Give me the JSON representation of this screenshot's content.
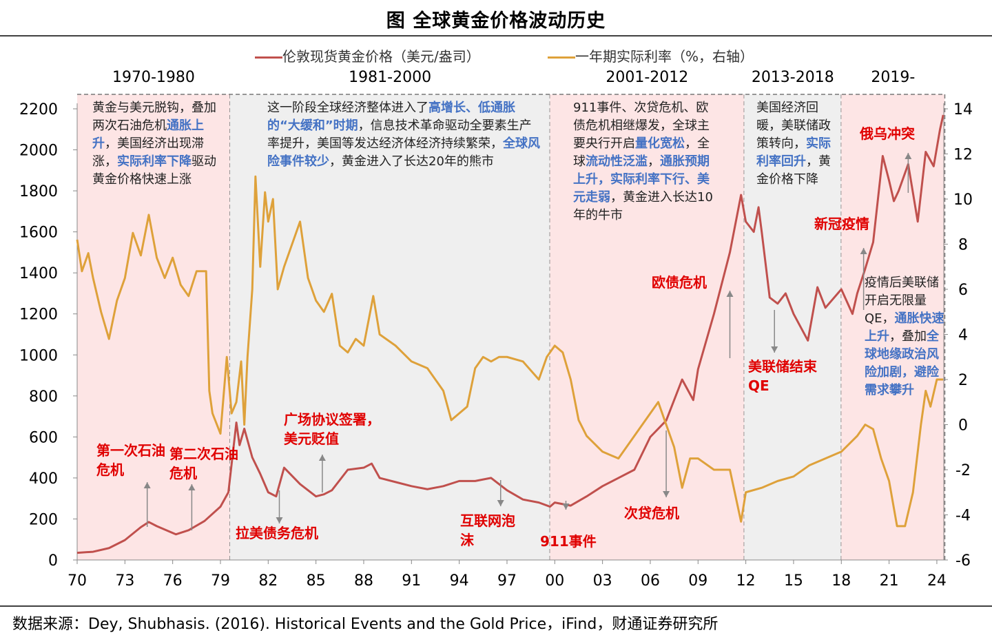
{
  "title": "图  全球黄金价格波动历史",
  "source": "数据来源：Dey, Shubhasis. (2016). Historical Events and the Gold Price，iFind，财通证券研究所",
  "chart_data": {
    "type": "line",
    "x_ticks": [
      "70",
      "73",
      "76",
      "79",
      "82",
      "85",
      "88",
      "91",
      "94",
      "97",
      "00",
      "03",
      "06",
      "09",
      "12",
      "15",
      "18",
      "21",
      "24"
    ],
    "y_left": {
      "range": [
        0,
        2200
      ],
      "ticks": [
        0,
        200,
        400,
        600,
        800,
        1000,
        1200,
        1400,
        1600,
        1800,
        2000,
        2200
      ]
    },
    "y_right": {
      "range": [
        -6,
        14
      ],
      "ticks": [
        -6,
        -4,
        -2,
        0,
        2,
        4,
        6,
        8,
        10,
        12,
        14
      ]
    },
    "colors": {
      "gold": "#c0504d",
      "rate": "#dea13a",
      "shade_pink": "#fde5e5",
      "shade_gray": "#efefef",
      "highlight": "#4472c4",
      "event": "#e00000"
    },
    "series": [
      {
        "name": "伦敦现货黄金价格（美元/盎司）",
        "axis": "left",
        "x": [
          1970,
          1971,
          1972,
          1973,
          1974,
          1974.5,
          1975,
          1976.2,
          1977,
          1978,
          1979,
          1979.5,
          1980,
          1980.2,
          1980.5,
          1981,
          1981.5,
          1982,
          1982.5,
          1983,
          1983.5,
          1984,
          1985,
          1985.5,
          1986,
          1987,
          1988,
          1988.5,
          1989,
          1990,
          1991,
          1992,
          1993,
          1994,
          1995,
          1996,
          1997,
          1998,
          1999,
          1999.7,
          2000,
          2001,
          2002,
          2003,
          2004,
          2005,
          2006,
          2007,
          2008,
          2008.7,
          2009,
          2010,
          2011,
          2011.7,
          2012,
          2012.5,
          2012.8,
          2013,
          2013.5,
          2014,
          2014.5,
          2015,
          2015.9,
          2016.5,
          2017,
          2018,
          2018.7,
          2019,
          2019.5,
          2020,
          2020.6,
          2021,
          2021.3,
          2021.6,
          2022.2,
          2022.8,
          2023.3,
          2023.8,
          2024.2,
          2024.4
        ],
        "y": [
          35,
          40,
          58,
          97,
          160,
          185,
          165,
          125,
          145,
          190,
          260,
          330,
          670,
          560,
          640,
          500,
          420,
          330,
          310,
          450,
          410,
          370,
          310,
          320,
          340,
          440,
          450,
          470,
          400,
          380,
          360,
          345,
          360,
          385,
          385,
          400,
          340,
          295,
          280,
          260,
          280,
          265,
          310,
          360,
          400,
          440,
          600,
          680,
          880,
          780,
          930,
          1200,
          1500,
          1780,
          1650,
          1600,
          1720,
          1600,
          1280,
          1250,
          1300,
          1200,
          1070,
          1330,
          1230,
          1320,
          1200,
          1300,
          1420,
          1550,
          1970,
          1850,
          1750,
          1800,
          1930,
          1650,
          1990,
          1920,
          2100,
          2170
        ]
      },
      {
        "name": "一年期实际利率（%，右轴）",
        "axis": "right",
        "x": [
          1970,
          1970.3,
          1970.7,
          1971,
          1971.5,
          1972,
          1972.5,
          1973,
          1973.5,
          1974,
          1974.5,
          1975,
          1975.5,
          1976,
          1976.5,
          1977,
          1977.5,
          1978.1,
          1978.3,
          1978.5,
          1979,
          1979.4,
          1979.7,
          1980,
          1980.3,
          1980.5,
          1980.7,
          1981,
          1981.2,
          1981.5,
          1981.8,
          1982,
          1982.3,
          1982.6,
          1983,
          1983.5,
          1984,
          1984.5,
          1985,
          1985.5,
          1986,
          1986.5,
          1987,
          1987.5,
          1988,
          1988.6,
          1989,
          1990,
          1991,
          1992,
          1993,
          1993.5,
          1994,
          1994.5,
          1995,
          1995.5,
          1996,
          1996.5,
          1997,
          1998,
          1999,
          1999.5,
          2000,
          2000.5,
          2001,
          2001.5,
          2002,
          2003,
          2004,
          2005,
          2006,
          2006.5,
          2007,
          2007.5,
          2008,
          2008.5,
          2009,
          2010,
          2011,
          2011.7,
          2012,
          2013,
          2014,
          2015,
          2016,
          2017,
          2018,
          2019,
          2019.5,
          2020,
          2020.5,
          2021,
          2021.5,
          2022,
          2022.5,
          2023,
          2023.3,
          2023.6,
          2024,
          2024.4
        ],
        "y": [
          8.2,
          6.8,
          7.6,
          6.5,
          5,
          3.8,
          5.5,
          6.5,
          8.5,
          7.5,
          9.3,
          7.4,
          6.5,
          7.4,
          6.2,
          5.7,
          6.8,
          6.8,
          1.5,
          0.5,
          -0.4,
          3,
          0.5,
          1,
          2.8,
          0,
          3,
          6,
          11,
          7,
          10.3,
          9,
          10,
          6,
          7,
          8,
          9,
          6.5,
          5.5,
          5,
          5.8,
          3.5,
          3.2,
          3.8,
          3.5,
          5.7,
          4,
          3.5,
          2.8,
          2.5,
          1.5,
          0.2,
          0.5,
          0.8,
          2.5,
          3,
          2.8,
          3,
          3,
          2.8,
          2,
          3,
          3.5,
          3.2,
          2,
          0.2,
          -0.5,
          -1.2,
          -1.5,
          -0.5,
          0.5,
          1,
          0,
          -1,
          -2.8,
          -1.5,
          -1.5,
          -2,
          -2,
          -4.3,
          -3,
          -2.8,
          -2.5,
          -2.3,
          -1.8,
          -1.5,
          -1.2,
          -0.5,
          0,
          -0.2,
          -1.5,
          -2.5,
          -4.5,
          -4.5,
          -3,
          0,
          1.5,
          0.8,
          2,
          2
        ]
      }
    ],
    "periods": [
      {
        "label": "1970-1980",
        "from": 1970,
        "to": 1979.6,
        "shade": "pink"
      },
      {
        "label": "1981-2000",
        "from": 1979.6,
        "to": 1999.7,
        "shade": "gray"
      },
      {
        "label": "2001-2012",
        "from": 1999.7,
        "to": 2011.9,
        "shade": "pink"
      },
      {
        "label": "2013-2018",
        "from": 2011.9,
        "to": 2018,
        "shade": "gray"
      },
      {
        "label": "2019-",
        "from": 2018,
        "to": 2024.5,
        "shade": "pink"
      }
    ],
    "notes": [
      [
        {
          "t": "黄金与美元脱钩，叠加两次石油危机"
        },
        {
          "t": "通胀上升",
          "hl": true
        },
        {
          "t": "，美国经济出现滞涨，"
        },
        {
          "t": "实际利率下降",
          "hl": true
        },
        {
          "t": "驱动黄金价格快速上涨"
        }
      ],
      [
        {
          "t": "这一阶段全球经济整体进入了"
        },
        {
          "t": "高增长、低通胀的“大缓和”时期",
          "hl": true
        },
        {
          "t": "，信息技术革命驱动全要素生产率提升，美国等发达经济体经济持续繁荣，"
        },
        {
          "t": "全球风险事件较少",
          "hl": true
        },
        {
          "t": "，黄金进入了长达20年的熊市"
        }
      ],
      [
        {
          "t": "911事件、次贷危机、欧债危机相继爆发，全球主要央行开启"
        },
        {
          "t": "量化宽松",
          "hl": true
        },
        {
          "t": "，全球"
        },
        {
          "t": "流动性泛滥",
          "hl": true
        },
        {
          "t": "，"
        },
        {
          "t": "通胀预期上升，实际利率下行、美元走弱",
          "hl": true
        },
        {
          "t": "，黄金进入长达10年的牛市"
        }
      ],
      [
        {
          "t": "美国经济回暖，美联储政策转向，"
        },
        {
          "t": "实际利率回升",
          "hl": true
        },
        {
          "t": "，黄金价格下降"
        }
      ],
      [
        {
          "t": "疫情后美联储开启无限量QE，"
        },
        {
          "t": "通胀快速上升",
          "hl": true
        },
        {
          "t": "，叠加"
        },
        {
          "t": "全球地缘政治风险加剧，避险需求攀升",
          "hl": true
        }
      ]
    ],
    "events": [
      {
        "label": "第一次石油危机",
        "year": 1974.4,
        "arrow_dir": "up"
      },
      {
        "label": "第二次石油危机",
        "year": 1977.2,
        "arrow_dir": "up"
      },
      {
        "label": "拉美债务危机",
        "year": 1982.7,
        "arrow_dir": "down"
      },
      {
        "label": "广场协议签署，美元贬值",
        "year": 1985.4,
        "arrow_dir": "up"
      },
      {
        "label": "互联网泡沫",
        "year": 1996.6,
        "arrow_dir": "down"
      },
      {
        "label": "911事件",
        "year": 2000.7,
        "arrow_dir": "down"
      },
      {
        "label": "次贷危机",
        "year": 2007,
        "arrow_dir": "down"
      },
      {
        "label": "欧债危机",
        "year": 2011,
        "arrow_dir": "up"
      },
      {
        "label": "美联储结束QE",
        "year": 2013.8,
        "arrow_dir": "down"
      },
      {
        "label": "新冠疫情",
        "year": 2019.4,
        "arrow_dir": "up"
      },
      {
        "label": "俄乌冲突",
        "year": 2022.2,
        "arrow_dir": "up"
      }
    ]
  }
}
